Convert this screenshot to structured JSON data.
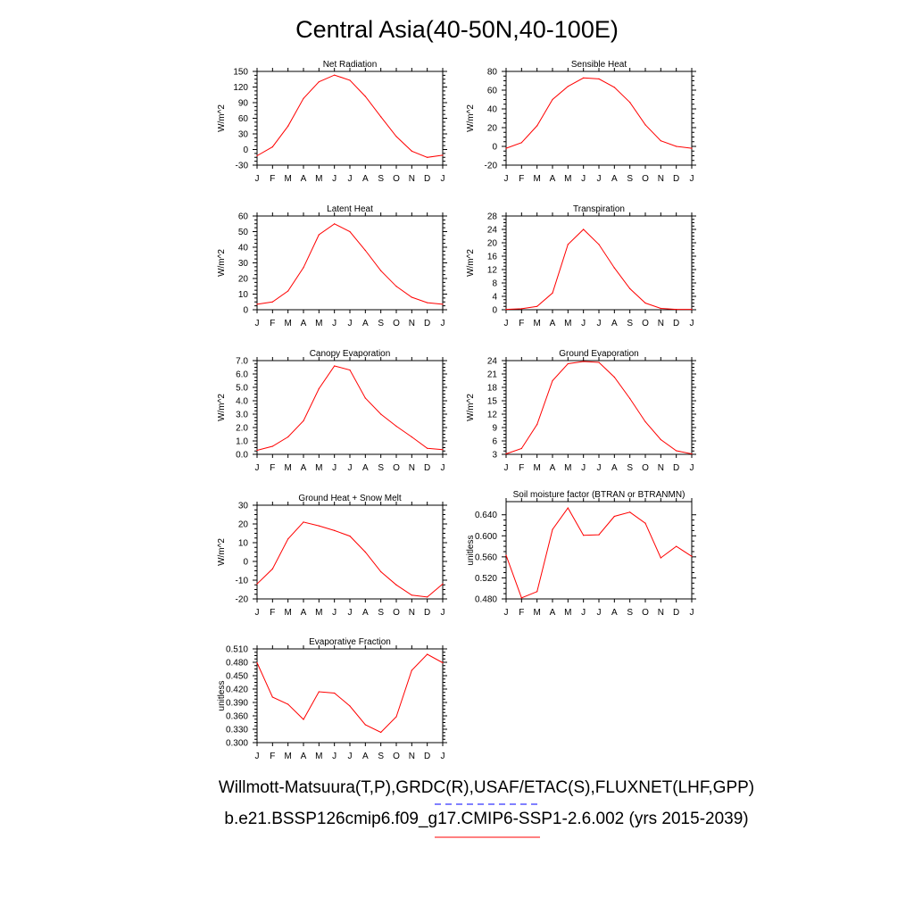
{
  "title": "Central Asia(40-50N,40-100E)",
  "footer": {
    "obs_line": "Willmott-Matsuura(T,P),GRDC(R),USAF/ETAC(S),FLUXNET(LHF,GPP)",
    "model_line": "b.e21.BSSP126cmip6.f09_g17.CMIP6-SSP1-2.6.002 (yrs 2015-2039)",
    "obs_color": "#0000ff",
    "model_color": "#ff0000"
  },
  "chart_data": [
    {
      "type": "line",
      "title": "Net Radiation",
      "ylabel": "W/m^2",
      "ylim": [
        -30,
        150
      ],
      "yticks": [
        -30,
        0,
        30,
        60,
        90,
        120,
        150
      ],
      "ytick_labels": [
        "-30",
        "0",
        "30",
        "60",
        "90",
        "120",
        "150"
      ],
      "categories": [
        "J",
        "F",
        "M",
        "A",
        "M",
        "J",
        "J",
        "A",
        "S",
        "O",
        "N",
        "D",
        "J"
      ],
      "series": [
        {
          "color": "#ff0000",
          "values": [
            -12,
            5,
            45,
            98,
            130,
            143,
            133,
            102,
            63,
            25,
            -3,
            -15,
            -11
          ]
        }
      ]
    },
    {
      "type": "line",
      "title": "Sensible Heat",
      "ylabel": "W/m^2",
      "ylim": [
        -20,
        80
      ],
      "yticks": [
        -20,
        0,
        20,
        40,
        60,
        80
      ],
      "ytick_labels": [
        "-20",
        "0",
        "20",
        "40",
        "60",
        "80"
      ],
      "categories": [
        "J",
        "F",
        "M",
        "A",
        "M",
        "J",
        "J",
        "A",
        "S",
        "O",
        "N",
        "D",
        "J"
      ],
      "series": [
        {
          "color": "#ff0000",
          "values": [
            -2,
            4,
            22,
            50,
            64,
            73,
            72,
            63,
            47,
            23,
            6,
            0,
            -2
          ]
        }
      ]
    },
    {
      "type": "line",
      "title": "Latent Heat",
      "ylabel": "W/m^2",
      "ylim": [
        0,
        60
      ],
      "yticks": [
        0,
        10,
        20,
        30,
        40,
        50,
        60
      ],
      "ytick_labels": [
        "0",
        "10",
        "20",
        "30",
        "40",
        "50",
        "60"
      ],
      "categories": [
        "J",
        "F",
        "M",
        "A",
        "M",
        "J",
        "J",
        "A",
        "S",
        "O",
        "N",
        "D",
        "J"
      ],
      "series": [
        {
          "color": "#ff0000",
          "values": [
            3.5,
            5,
            12,
            27,
            48,
            55,
            50,
            38,
            25,
            15,
            8,
            4.5,
            3.5
          ]
        }
      ]
    },
    {
      "type": "line",
      "title": "Transpiration",
      "ylabel": "W/m^2",
      "ylim": [
        0,
        28
      ],
      "yticks": [
        0,
        4,
        8,
        12,
        16,
        20,
        24,
        28
      ],
      "ytick_labels": [
        "0",
        "4",
        "8",
        "12",
        "16",
        "20",
        "24",
        "28"
      ],
      "categories": [
        "J",
        "F",
        "M",
        "A",
        "M",
        "J",
        "J",
        "A",
        "S",
        "O",
        "N",
        "D",
        "J"
      ],
      "series": [
        {
          "color": "#ff0000",
          "values": [
            0.1,
            0.3,
            1,
            5,
            19.5,
            24,
            19.5,
            12.5,
            6.3,
            2,
            0.4,
            0.1,
            0.1
          ]
        }
      ]
    },
    {
      "type": "line",
      "title": "Canopy Evaporation",
      "ylabel": "W/m^2",
      "ylim": [
        0,
        7
      ],
      "yticks": [
        0,
        1,
        2,
        3,
        4,
        5,
        6,
        7
      ],
      "ytick_labels": [
        "0.0",
        "1.0",
        "2.0",
        "3.0",
        "4.0",
        "5.0",
        "6.0",
        "7.0"
      ],
      "categories": [
        "J",
        "F",
        "M",
        "A",
        "M",
        "J",
        "J",
        "A",
        "S",
        "O",
        "N",
        "D",
        "J"
      ],
      "series": [
        {
          "color": "#ff0000",
          "values": [
            0.3,
            0.6,
            1.3,
            2.5,
            4.9,
            6.6,
            6.3,
            4.2,
            3.0,
            2.1,
            1.3,
            0.45,
            0.35
          ]
        }
      ]
    },
    {
      "type": "line",
      "title": "Ground Evaporation",
      "ylabel": "W/m^2",
      "ylim": [
        3,
        24
      ],
      "yticks": [
        3,
        6,
        9,
        12,
        15,
        18,
        21,
        24
      ],
      "ytick_labels": [
        "3",
        "6",
        "9",
        "12",
        "15",
        "18",
        "21",
        "24"
      ],
      "categories": [
        "J",
        "F",
        "M",
        "A",
        "M",
        "J",
        "J",
        "A",
        "S",
        "O",
        "N",
        "D",
        "J"
      ],
      "series": [
        {
          "color": "#ff0000",
          "values": [
            3.1,
            4.3,
            9.7,
            19.5,
            23.3,
            23.8,
            23.6,
            20.3,
            15.5,
            10.3,
            6.3,
            3.8,
            3.1
          ]
        }
      ]
    },
    {
      "type": "line",
      "title": "Ground Heat + Snow Melt",
      "ylabel": "W/m^2",
      "ylim": [
        -20,
        30
      ],
      "yticks": [
        -20,
        -10,
        0,
        10,
        20,
        30
      ],
      "ytick_labels": [
        "-20",
        "-10",
        "0",
        "10",
        "20",
        "30"
      ],
      "categories": [
        "J",
        "F",
        "M",
        "A",
        "M",
        "J",
        "J",
        "A",
        "S",
        "O",
        "N",
        "D",
        "J"
      ],
      "series": [
        {
          "color": "#ff0000",
          "values": [
            -12,
            -4,
            12,
            21,
            19,
            16.5,
            13.5,
            5,
            -5.5,
            -12.5,
            -18,
            -19,
            -12
          ]
        }
      ]
    },
    {
      "type": "line",
      "title": "Soil moisture factor (BTRAN or BTRANMN)",
      "ylabel": "unitless",
      "ylim": [
        0.48,
        0.665
      ],
      "yticks": [
        0.48,
        0.52,
        0.56,
        0.6,
        0.64
      ],
      "ytick_labels": [
        "0.480",
        "0.520",
        "0.560",
        "0.600",
        "0.640"
      ],
      "categories": [
        "J",
        "F",
        "M",
        "A",
        "M",
        "J",
        "J",
        "A",
        "S",
        "O",
        "N",
        "D",
        "J"
      ],
      "series": [
        {
          "color": "#ff0000",
          "values": [
            0.563,
            0.482,
            0.494,
            0.612,
            0.653,
            0.601,
            0.602,
            0.637,
            0.645,
            0.624,
            0.558,
            0.58,
            0.561
          ]
        }
      ]
    },
    {
      "type": "line",
      "title": "Evaporative Fraction",
      "ylabel": "unitless",
      "ylim": [
        0.3,
        0.51
      ],
      "yticks": [
        0.3,
        0.33,
        0.36,
        0.39,
        0.42,
        0.45,
        0.48,
        0.51
      ],
      "ytick_labels": [
        "0.300",
        "0.330",
        "0.360",
        "0.390",
        "0.420",
        "0.450",
        "0.480",
        "0.510"
      ],
      "categories": [
        "J",
        "F",
        "M",
        "A",
        "M",
        "J",
        "J",
        "A",
        "S",
        "O",
        "N",
        "D",
        "J"
      ],
      "series": [
        {
          "color": "#ff0000",
          "values": [
            0.479,
            0.402,
            0.386,
            0.352,
            0.414,
            0.411,
            0.382,
            0.34,
            0.323,
            0.358,
            0.462,
            0.498,
            0.479
          ]
        }
      ]
    }
  ]
}
